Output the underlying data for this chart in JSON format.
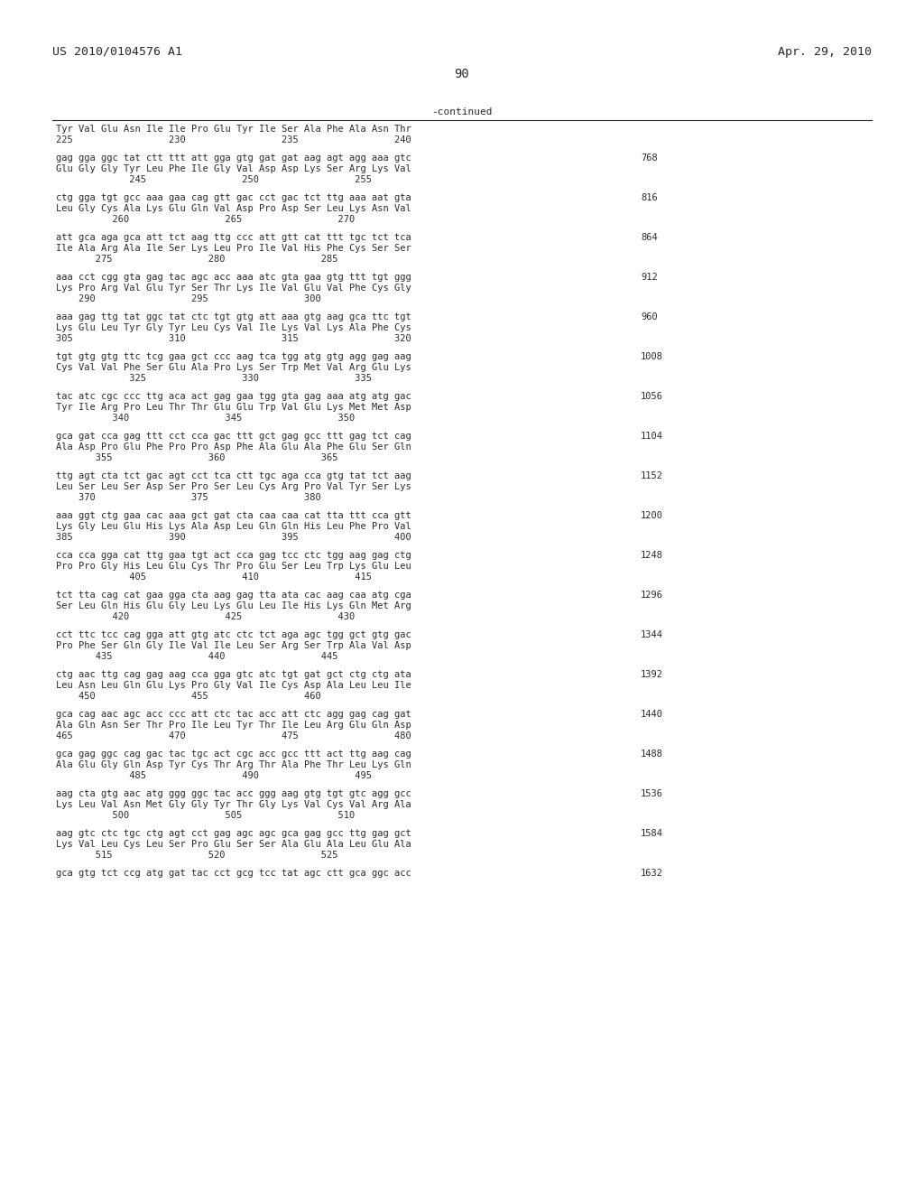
{
  "header_left": "US 2010/0104576 A1",
  "header_right": "Apr. 29, 2010",
  "page_number": "90",
  "continued_label": "-continued",
  "background_color": "#ffffff",
  "text_color": "#2a2a2a",
  "font_size_header": 9.5,
  "font_size_body": 7.5,
  "font_size_page": 10,
  "content_blocks": [
    {
      "nt": "",
      "aa": "Tyr Val Glu Asn Ile Ile Pro Glu Tyr Ile Ser Ala Phe Ala Asn Thr",
      "nums": "225                 230                 235                 240",
      "num_right": ""
    },
    {
      "nt": "gag gga ggc tat ctt ttt att gga gtg gat gat aag agt agg aaa gtc",
      "aa": "Glu Gly Gly Tyr Leu Phe Ile Gly Val Asp Asp Lys Ser Arg Lys Val",
      "nums": "             245                 250                 255",
      "num_right": "768"
    },
    {
      "nt": "ctg gga tgt gcc aaa gaa cag gtt gac cct gac tct ttg aaa aat gta",
      "aa": "Leu Gly Cys Ala Lys Glu Gln Val Asp Pro Asp Ser Leu Lys Asn Val",
      "nums": "          260                 265                 270",
      "num_right": "816"
    },
    {
      "nt": "att gca aga gca att tct aag ttg ccc att gtt cat ttt tgc tct tca",
      "aa": "Ile Ala Arg Ala Ile Ser Lys Leu Pro Ile Val His Phe Cys Ser Ser",
      "nums": "       275                 280                 285",
      "num_right": "864"
    },
    {
      "nt": "aaa cct cgg gta gag tac agc acc aaa atc gta gaa gtg ttt tgt ggg",
      "aa": "Lys Pro Arg Val Glu Tyr Ser Thr Lys Ile Val Glu Val Phe Cys Gly",
      "nums": "    290                 295                 300",
      "num_right": "912"
    },
    {
      "nt": "aaa gag ttg tat ggc tat ctc tgt gtg att aaa gtg aag gca ttc tgt",
      "aa": "Lys Glu Leu Tyr Gly Tyr Leu Cys Val Ile Lys Val Lys Ala Phe Cys",
      "nums": "305                 310                 315                 320",
      "num_right": "960"
    },
    {
      "nt": "tgt gtg gtg ttc tcg gaa gct ccc aag tca tgg atg gtg agg gag aag",
      "aa": "Cys Val Val Phe Ser Glu Ala Pro Lys Ser Trp Met Val Arg Glu Lys",
      "nums": "             325                 330                 335",
      "num_right": "1008"
    },
    {
      "nt": "tac atc cgc ccc ttg aca act gag gaa tgg gta gag aaa atg atg gac",
      "aa": "Tyr Ile Arg Pro Leu Thr Thr Glu Glu Trp Val Glu Lys Met Met Asp",
      "nums": "          340                 345                 350",
      "num_right": "1056"
    },
    {
      "nt": "gca gat cca gag ttt cct cca gac ttt gct gag gcc ttt gag tct cag",
      "aa": "Ala Asp Pro Glu Phe Pro Pro Asp Phe Ala Glu Ala Phe Glu Ser Gln",
      "nums": "       355                 360                 365",
      "num_right": "1104"
    },
    {
      "nt": "ttg agt cta tct gac agt cct tca ctt tgc aga cca gtg tat tct aag",
      "aa": "Leu Ser Leu Ser Asp Ser Pro Ser Leu Cys Arg Pro Val Tyr Ser Lys",
      "nums": "    370                 375                 380",
      "num_right": "1152"
    },
    {
      "nt": "aaa ggt ctg gaa cac aaa gct gat cta caa caa cat tta ttt cca gtt",
      "aa": "Lys Gly Leu Glu His Lys Ala Asp Leu Gln Gln His Leu Phe Pro Val",
      "nums": "385                 390                 395                 400",
      "num_right": "1200"
    },
    {
      "nt": "cca cca gga cat ttg gaa tgt act cca gag tcc ctc tgg aag gag ctg",
      "aa": "Pro Pro Gly His Leu Glu Cys Thr Pro Glu Ser Leu Trp Lys Glu Leu",
      "nums": "             405                 410                 415",
      "num_right": "1248"
    },
    {
      "nt": "tct tta cag cat gaa gga cta aag gag tta ata cac aag caa atg cga",
      "aa": "Ser Leu Gln His Glu Gly Leu Lys Glu Leu Ile His Lys Gln Met Arg",
      "nums": "          420                 425                 430",
      "num_right": "1296"
    },
    {
      "nt": "cct ttc tcc cag gga att gtg atc ctc tct aga agc tgg gct gtg gac",
      "aa": "Pro Phe Ser Gln Gly Ile Val Ile Leu Ser Arg Ser Trp Ala Val Asp",
      "nums": "       435                 440                 445",
      "num_right": "1344"
    },
    {
      "nt": "ctg aac ttg cag gag aag cca gga gtc atc tgt gat gct ctg ctg ata",
      "aa": "Leu Asn Leu Gln Glu Lys Pro Gly Val Ile Cys Asp Ala Leu Leu Ile",
      "nums": "    450                 455                 460",
      "num_right": "1392"
    },
    {
      "nt": "gca cag aac agc acc ccc att ctc tac acc att ctc agg gag cag gat",
      "aa": "Ala Gln Asn Ser Thr Pro Ile Leu Tyr Thr Ile Leu Arg Glu Gln Asp",
      "nums": "465                 470                 475                 480",
      "num_right": "1440"
    },
    {
      "nt": "gca gag ggc cag gac tac tgc act cgc acc gcc ttt act ttg aag cag",
      "aa": "Ala Glu Gly Gln Asp Tyr Cys Thr Arg Thr Ala Phe Thr Leu Lys Gln",
      "nums": "             485                 490                 495",
      "num_right": "1488"
    },
    {
      "nt": "aag cta gtg aac atg ggg ggc tac acc ggg aag gtg tgt gtc agg gcc",
      "aa": "Lys Leu Val Asn Met Gly Gly Tyr Thr Gly Lys Val Cys Val Arg Ala",
      "nums": "          500                 505                 510",
      "num_right": "1536"
    },
    {
      "nt": "aag gtc ctc tgc ctg agt cct gag agc agc gca gag gcc ttg gag gct",
      "aa": "Lys Val Leu Cys Leu Ser Pro Glu Ser Ser Ala Glu Ala Leu Glu Ala",
      "nums": "       515                 520                 525",
      "num_right": "1584"
    },
    {
      "nt": "gca gtg tct ccg atg gat tac cct gcg tcc tat agc ctt gca ggc acc",
      "aa": "",
      "nums": "",
      "num_right": "1632"
    }
  ]
}
